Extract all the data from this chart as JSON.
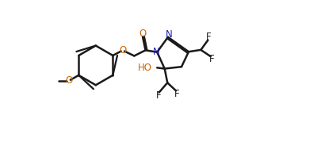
{
  "background_color": "#ffffff",
  "bond_color": "#1a1a1a",
  "nitrogen_color": "#2222aa",
  "oxygen_color": "#cc6600",
  "line_width": 1.8,
  "fig_width": 4.05,
  "fig_height": 1.79,
  "dpi": 100,
  "xlim": [
    0,
    11
  ],
  "ylim": [
    -2.5,
    5.0
  ]
}
